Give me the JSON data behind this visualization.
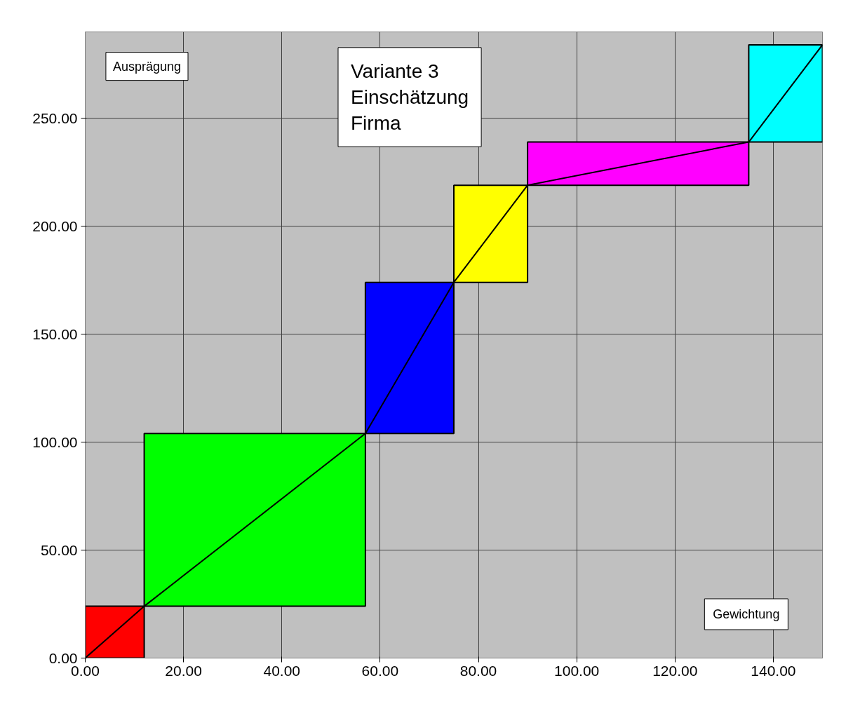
{
  "chart_data": {
    "type": "bar",
    "series": [
      {
        "x": [
          6,
          34.5,
          66,
          82.5,
          112.5,
          142.5
        ],
        "base": [
          0,
          24,
          104,
          174,
          219,
          239
        ],
        "values": [
          24,
          80,
          70,
          45,
          20,
          45
        ],
        "colors": [
          "#ff0000",
          "#00ff00",
          "#0000ff",
          "#ffff00",
          "#ff00ff",
          "#00ffff"
        ]
      },
      {
        "type": "line",
        "color": "#000000",
        "x": [
          0,
          12,
          57,
          75,
          90,
          135,
          150
        ],
        "values": [
          0,
          24,
          104,
          174,
          219,
          239,
          284
        ]
      }
    ],
    "xlim": [
      0,
      150
    ],
    "ylim": [
      0,
      290
    ],
    "xticks": [
      {
        "value": 0,
        "label": "0.00"
      },
      {
        "value": 20,
        "label": "20.00"
      },
      {
        "value": 40,
        "label": "40.00"
      },
      {
        "value": 60,
        "label": "60.00"
      },
      {
        "value": 80,
        "label": "80.00"
      },
      {
        "value": 100,
        "label": "100.00"
      },
      {
        "value": 120,
        "label": "120.00"
      },
      {
        "value": 140,
        "label": "140.00"
      }
    ],
    "yticks": [
      {
        "value": 0,
        "label": "0.00"
      },
      {
        "value": 50,
        "label": "50.00"
      },
      {
        "value": 100,
        "label": "100.00"
      },
      {
        "value": 150,
        "label": "150.00"
      },
      {
        "value": 200,
        "label": "200.00"
      },
      {
        "value": 250,
        "label": "250.00"
      }
    ],
    "grid": true,
    "annotations": [
      "Ausprägung",
      "Variante 3\nEinschätzung\nFirma",
      "Gewichtung"
    ]
  }
}
